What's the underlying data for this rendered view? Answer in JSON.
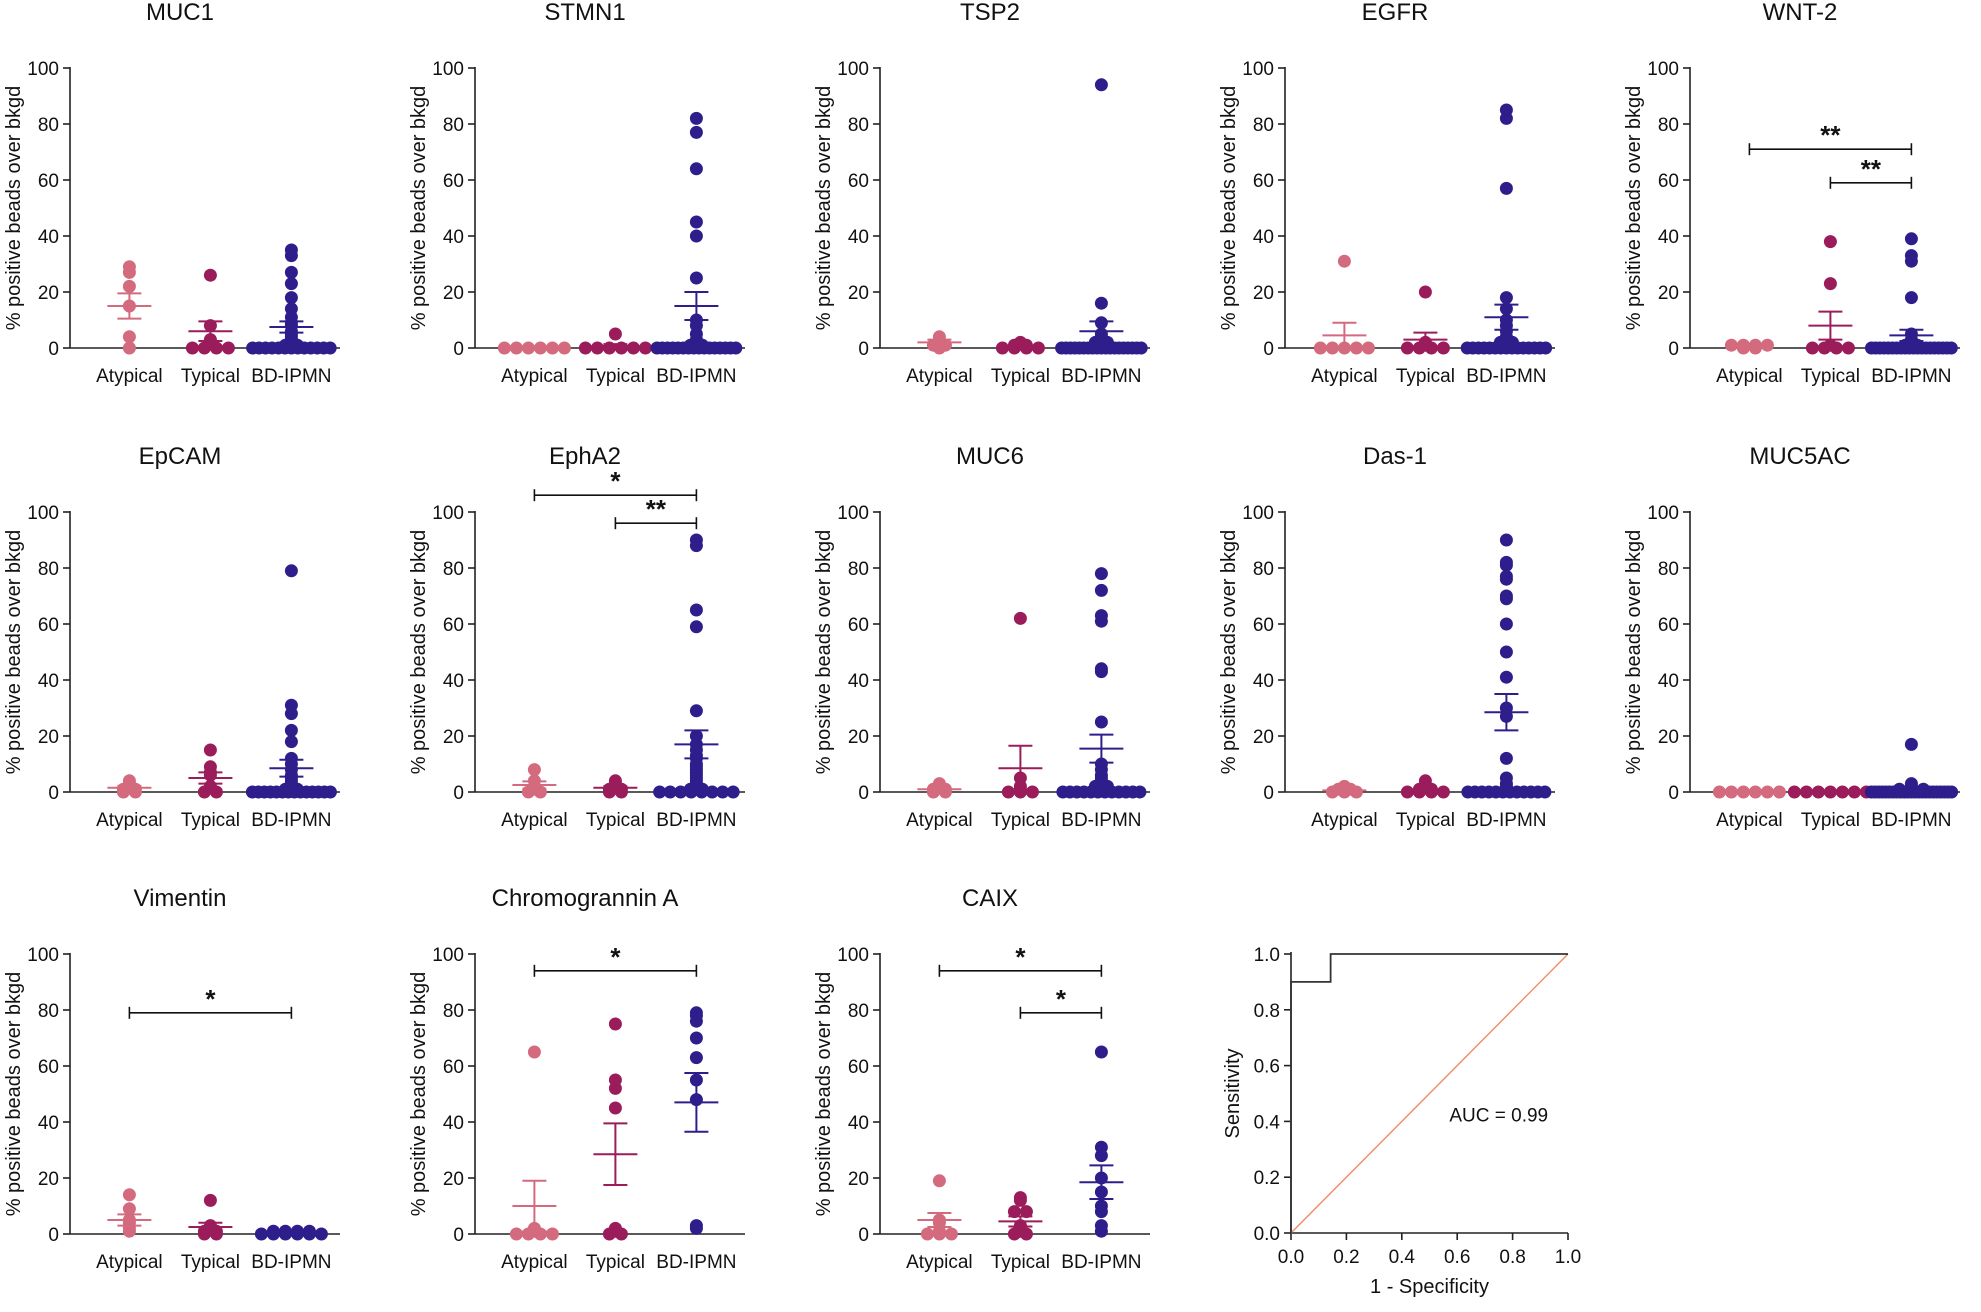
{
  "colors": {
    "Atypical": "#d46a7e",
    "Typical": "#9b1c5a",
    "BD-IPMN": "#2e1e8c",
    "roc_line": "#333333",
    "diagonal": "#f08a6a"
  },
  "chart_data": [
    {
      "type": "scatter",
      "title": "MUC1",
      "ylabel": "% positive beads over bkgd",
      "ylim": [
        0,
        100
      ],
      "yticks": [
        "0",
        "20",
        "40",
        "60",
        "80",
        "100"
      ],
      "categories": [
        "Atypical",
        "Typical",
        "BD-IPMN"
      ],
      "series": [
        {
          "name": "Atypical",
          "values": [
            29,
            27,
            22,
            15,
            4,
            0
          ],
          "mean": 15,
          "sem": 4.5
        },
        {
          "name": "Typical",
          "values": [
            26,
            8,
            3,
            0,
            0,
            0,
            0
          ],
          "mean": 6,
          "sem": 3.5
        },
        {
          "name": "BD-IPMN",
          "values": [
            35,
            33,
            27,
            23,
            18,
            14,
            11,
            9,
            8,
            6,
            5,
            4,
            3,
            2,
            1,
            1,
            0,
            0,
            0,
            0,
            0,
            0,
            0,
            0,
            0,
            0,
            0,
            0,
            0
          ],
          "mean": 7.5,
          "sem": 2
        }
      ],
      "significance": []
    },
    {
      "type": "scatter",
      "title": "STMN1",
      "ylabel": "% positive beads over bkgd",
      "ylim": [
        0,
        100
      ],
      "yticks": [
        "0",
        "20",
        "40",
        "60",
        "80",
        "100"
      ],
      "categories": [
        "Atypical",
        "Typical",
        "BD-IPMN"
      ],
      "series": [
        {
          "name": "Atypical",
          "values": [
            0,
            0,
            0,
            0,
            0,
            0
          ],
          "mean": 0,
          "sem": 0
        },
        {
          "name": "Typical",
          "values": [
            5,
            0,
            0,
            0,
            0,
            0,
            0
          ],
          "mean": 0.7,
          "sem": 0.7
        },
        {
          "name": "BD-IPMN",
          "values": [
            82,
            77,
            64,
            45,
            40,
            25,
            10,
            8,
            5,
            3,
            2,
            1,
            1,
            0,
            0,
            0,
            0,
            0,
            0,
            0,
            0,
            0,
            0,
            0,
            0,
            0,
            0,
            0,
            0
          ],
          "mean": 15,
          "sem": 5
        }
      ],
      "significance": []
    },
    {
      "type": "scatter",
      "title": "TSP2",
      "ylabel": "% positive beads over bkgd",
      "ylim": [
        0,
        100
      ],
      "yticks": [
        "0",
        "20",
        "40",
        "60",
        "80",
        "100"
      ],
      "categories": [
        "Atypical",
        "Typical",
        "BD-IPMN"
      ],
      "series": [
        {
          "name": "Atypical",
          "values": [
            4,
            3,
            2,
            1,
            1,
            0
          ],
          "mean": 2,
          "sem": 1
        },
        {
          "name": "Typical",
          "values": [
            2,
            1,
            1,
            0,
            0,
            0,
            0
          ],
          "mean": 0.7,
          "sem": 0.4
        },
        {
          "name": "BD-IPMN",
          "values": [
            94,
            16,
            9,
            5,
            4,
            3,
            2,
            2,
            1,
            1,
            0,
            0,
            0,
            0,
            0,
            0,
            0,
            0,
            0,
            0,
            0,
            0,
            0,
            0,
            0,
            0,
            0,
            0,
            0
          ],
          "mean": 6,
          "sem": 3.5
        }
      ],
      "significance": []
    },
    {
      "type": "scatter",
      "title": "EGFR",
      "ylabel": "% positive beads over bkgd",
      "ylim": [
        0,
        100
      ],
      "yticks": [
        "0",
        "20",
        "40",
        "60",
        "80",
        "100"
      ],
      "categories": [
        "Atypical",
        "Typical",
        "BD-IPMN"
      ],
      "series": [
        {
          "name": "Atypical",
          "values": [
            31,
            0,
            0,
            0,
            0,
            0
          ],
          "mean": 4.5,
          "sem": 4.5
        },
        {
          "name": "Typical",
          "values": [
            20,
            2,
            1,
            0,
            0,
            0,
            0
          ],
          "mean": 3,
          "sem": 2.5
        },
        {
          "name": "BD-IPMN",
          "values": [
            85,
            82,
            57,
            18,
            14,
            10,
            8,
            6,
            4,
            3,
            2,
            2,
            1,
            1,
            0,
            0,
            0,
            0,
            0,
            0,
            0,
            0,
            0,
            0,
            0,
            0,
            0,
            0,
            0
          ],
          "mean": 11,
          "sem": 4.5
        }
      ],
      "significance": []
    },
    {
      "type": "scatter",
      "title": "WNT-2",
      "ylabel": "% positive beads over bkgd",
      "ylim": [
        0,
        100
      ],
      "yticks": [
        "0",
        "20",
        "40",
        "60",
        "80",
        "100"
      ],
      "categories": [
        "Atypical",
        "Typical",
        "BD-IPMN"
      ],
      "series": [
        {
          "name": "Atypical",
          "values": [
            1,
            1,
            1,
            1,
            0,
            0
          ],
          "mean": 0.5,
          "sem": 0.3
        },
        {
          "name": "Typical",
          "values": [
            38,
            23,
            1,
            0,
            0,
            0,
            0
          ],
          "mean": 8,
          "sem": 5
        },
        {
          "name": "BD-IPMN",
          "values": [
            39,
            33,
            31,
            18,
            5,
            3,
            2,
            1,
            1,
            0,
            0,
            0,
            0,
            0,
            0,
            0,
            0,
            0,
            0,
            0,
            0,
            0,
            0,
            0,
            0,
            0,
            0,
            0,
            0
          ],
          "mean": 4.5,
          "sem": 2
        }
      ],
      "significance": [
        {
          "from": 0,
          "to": 2,
          "level": 71,
          "label": "**"
        },
        {
          "from": 1,
          "to": 2,
          "level": 59,
          "label": "**"
        }
      ]
    },
    {
      "type": "scatter",
      "title": "EpCAM",
      "ylabel": "% positive beads over bkgd",
      "ylim": [
        0,
        100
      ],
      "yticks": [
        "0",
        "20",
        "40",
        "60",
        "80",
        "100"
      ],
      "categories": [
        "Atypical",
        "Typical",
        "BD-IPMN"
      ],
      "series": [
        {
          "name": "Atypical",
          "values": [
            4,
            3,
            1,
            1,
            0,
            0
          ],
          "mean": 1.5,
          "sem": 0.7
        },
        {
          "name": "Typical",
          "values": [
            15,
            9,
            7,
            6,
            2,
            0,
            0
          ],
          "mean": 5,
          "sem": 2
        },
        {
          "name": "BD-IPMN",
          "values": [
            79,
            31,
            28,
            22,
            18,
            12,
            10,
            8,
            6,
            5,
            4,
            3,
            2,
            1,
            1,
            0,
            0,
            0,
            0,
            0,
            0,
            0,
            0,
            0,
            0,
            0,
            0,
            0,
            0
          ],
          "mean": 8.5,
          "sem": 3
        }
      ],
      "significance": []
    },
    {
      "type": "scatter",
      "title": "EphA2",
      "ylabel": "% positive beads over bkgd",
      "ylim": [
        0,
        100
      ],
      "yticks": [
        "0",
        "20",
        "40",
        "60",
        "80",
        "100"
      ],
      "categories": [
        "Atypical",
        "Typical",
        "BD-IPMN"
      ],
      "series": [
        {
          "name": "Atypical",
          "values": [
            8,
            4,
            2,
            1,
            0,
            0
          ],
          "mean": 2.5,
          "sem": 1.3
        },
        {
          "name": "Typical",
          "values": [
            4,
            3,
            2,
            1,
            1,
            0,
            0
          ],
          "mean": 1.5,
          "sem": 0.6
        },
        {
          "name": "BD-IPMN",
          "values": [
            90,
            88,
            65,
            59,
            29,
            20,
            17,
            15,
            13,
            12,
            10,
            9,
            8,
            7,
            6,
            5,
            4,
            3,
            2,
            1,
            1,
            0,
            0,
            0,
            0,
            0,
            0,
            0,
            0
          ],
          "mean": 17,
          "sem": 5
        }
      ],
      "significance": [
        {
          "from": 0,
          "to": 2,
          "level": 106,
          "label": "*"
        },
        {
          "from": 1,
          "to": 2,
          "level": 96,
          "label": "**"
        }
      ]
    },
    {
      "type": "scatter",
      "title": "MUC6",
      "ylabel": "% positive beads over bkgd",
      "ylim": [
        0,
        100
      ],
      "yticks": [
        "0",
        "20",
        "40",
        "60",
        "80",
        "100"
      ],
      "categories": [
        "Atypical",
        "Typical",
        "BD-IPMN"
      ],
      "series": [
        {
          "name": "Atypical",
          "values": [
            3,
            2,
            1,
            1,
            0,
            0
          ],
          "mean": 1,
          "sem": 0.5
        },
        {
          "name": "Typical",
          "values": [
            62,
            5,
            2,
            1,
            0,
            0,
            0
          ],
          "mean": 8.5,
          "sem": 8
        },
        {
          "name": "BD-IPMN",
          "values": [
            78,
            72,
            63,
            61,
            44,
            43,
            25,
            10,
            8,
            6,
            5,
            4,
            3,
            2,
            2,
            1,
            1,
            0,
            0,
            0,
            0,
            0,
            0,
            0,
            0,
            0,
            0,
            0,
            0
          ],
          "mean": 15.5,
          "sem": 5
        }
      ],
      "significance": []
    },
    {
      "type": "scatter",
      "title": "Das-1",
      "ylabel": "% positive beads over bkgd",
      "ylim": [
        0,
        100
      ],
      "yticks": [
        "0",
        "20",
        "40",
        "60",
        "80",
        "100"
      ],
      "categories": [
        "Atypical",
        "Typical",
        "BD-IPMN"
      ],
      "series": [
        {
          "name": "Atypical",
          "values": [
            2,
            1,
            1,
            0,
            0,
            0
          ],
          "mean": 0.6,
          "sem": 0.3
        },
        {
          "name": "Typical",
          "values": [
            4,
            1,
            1,
            0,
            0,
            0,
            0
          ],
          "mean": 0.8,
          "sem": 0.5
        },
        {
          "name": "BD-IPMN",
          "values": [
            90,
            82,
            81,
            77,
            76,
            70,
            69,
            60,
            50,
            41,
            30,
            27,
            12,
            5,
            3,
            2,
            1,
            0,
            0,
            0,
            0,
            0,
            0,
            0,
            0,
            0,
            0,
            0,
            0
          ],
          "mean": 28.5,
          "sem": 6.5
        }
      ],
      "significance": []
    },
    {
      "type": "scatter",
      "title": "MUC5AC",
      "ylabel": "% positive beads over bkgd",
      "ylim": [
        0,
        100
      ],
      "yticks": [
        "0",
        "20",
        "40",
        "60",
        "80",
        "100"
      ],
      "categories": [
        "Atypical",
        "Typical",
        "BD-IPMN"
      ],
      "series": [
        {
          "name": "Atypical",
          "values": [
            0,
            0,
            0,
            0,
            0,
            0
          ],
          "mean": 0,
          "sem": 0
        },
        {
          "name": "Typical",
          "values": [
            0,
            0,
            0,
            0,
            0,
            0,
            0
          ],
          "mean": 0,
          "sem": 0
        },
        {
          "name": "BD-IPMN",
          "values": [
            17,
            3,
            2,
            1,
            1,
            1,
            0,
            0,
            0,
            0,
            0,
            0,
            0,
            0,
            0,
            0,
            0,
            0,
            0,
            0,
            0,
            0,
            0,
            0,
            0,
            0,
            0,
            0,
            0
          ],
          "mean": 0.9,
          "sem": 0.6
        }
      ],
      "significance": []
    },
    {
      "type": "scatter",
      "title": "Vimentin",
      "ylabel": "% positive beads over bkgd",
      "ylim": [
        0,
        100
      ],
      "yticks": [
        "0",
        "20",
        "40",
        "60",
        "80",
        "100"
      ],
      "categories": [
        "Atypical",
        "Typical",
        "BD-IPMN"
      ],
      "series": [
        {
          "name": "Atypical",
          "values": [
            14,
            9,
            5,
            4,
            2,
            1
          ],
          "mean": 5,
          "sem": 2
        },
        {
          "name": "Typical",
          "values": [
            12,
            3,
            2,
            1,
            1,
            0,
            0
          ],
          "mean": 2.5,
          "sem": 1.5
        },
        {
          "name": "BD-IPMN",
          "values": [
            1,
            1,
            1,
            1,
            0,
            0,
            0,
            0,
            0,
            0
          ],
          "mean": 0.5,
          "sem": 0.2
        }
      ],
      "significance": [
        {
          "from": 0,
          "to": 2,
          "level": 79,
          "label": "*"
        }
      ]
    },
    {
      "type": "scatter",
      "title": "Chromogrannin A",
      "ylabel": "% positive beads over bkgd",
      "ylim": [
        0,
        100
      ],
      "yticks": [
        "0",
        "20",
        "40",
        "60",
        "80",
        "100"
      ],
      "categories": [
        "Atypical",
        "Typical",
        "BD-IPMN"
      ],
      "series": [
        {
          "name": "Atypical",
          "values": [
            65,
            2,
            1,
            0,
            0,
            0,
            0
          ],
          "mean": 10,
          "sem": 9
        },
        {
          "name": "Typical",
          "values": [
            75,
            55,
            52,
            45,
            2,
            1,
            0,
            0
          ],
          "mean": 28.5,
          "sem": 11
        },
        {
          "name": "BD-IPMN",
          "values": [
            79,
            78,
            76,
            70,
            63,
            55,
            48,
            3,
            2
          ],
          "mean": 47,
          "sem": 10.5
        }
      ],
      "significance": [
        {
          "from": 0,
          "to": 2,
          "level": 94,
          "label": "*"
        }
      ]
    },
    {
      "type": "scatter",
      "title": "CAIX",
      "ylabel": "% positive beads over bkgd",
      "ylim": [
        0,
        100
      ],
      "yticks": [
        "0",
        "20",
        "40",
        "60",
        "80",
        "100"
      ],
      "categories": [
        "Atypical",
        "Typical",
        "BD-IPMN"
      ],
      "series": [
        {
          "name": "Atypical",
          "values": [
            19,
            5,
            4,
            1,
            0,
            0,
            0
          ],
          "mean": 5,
          "sem": 2.5
        },
        {
          "name": "Typical",
          "values": [
            13,
            12,
            8,
            8,
            3,
            1,
            0,
            0
          ],
          "mean": 4.5,
          "sem": 1.8
        },
        {
          "name": "BD-IPMN",
          "values": [
            65,
            31,
            28,
            20,
            15,
            10,
            8,
            3,
            1
          ],
          "mean": 18.5,
          "sem": 6
        }
      ],
      "significance": [
        {
          "from": 0,
          "to": 2,
          "level": 94,
          "label": "*"
        },
        {
          "from": 1,
          "to": 2,
          "level": 79,
          "label": "*"
        }
      ]
    },
    {
      "type": "line",
      "title": "",
      "xlabel": "1 - Specificity",
      "ylabel": "Sensitivity",
      "xlim": [
        0,
        1
      ],
      "ylim": [
        0,
        1
      ],
      "xticks": [
        "0.0",
        "0.2",
        "0.4",
        "0.6",
        "0.8",
        "1.0"
      ],
      "yticks": [
        "0.0",
        "0.2",
        "0.4",
        "0.6",
        "0.8",
        "1.0"
      ],
      "series": [
        {
          "x": [
            0,
            0,
            0.143,
            0.143,
            1
          ],
          "y": [
            0,
            0.9,
            0.9,
            1.0,
            1.0
          ]
        },
        {
          "x": [
            0,
            1
          ],
          "y": [
            0,
            1
          ]
        }
      ],
      "annotation": "AUC =  0.99"
    }
  ]
}
